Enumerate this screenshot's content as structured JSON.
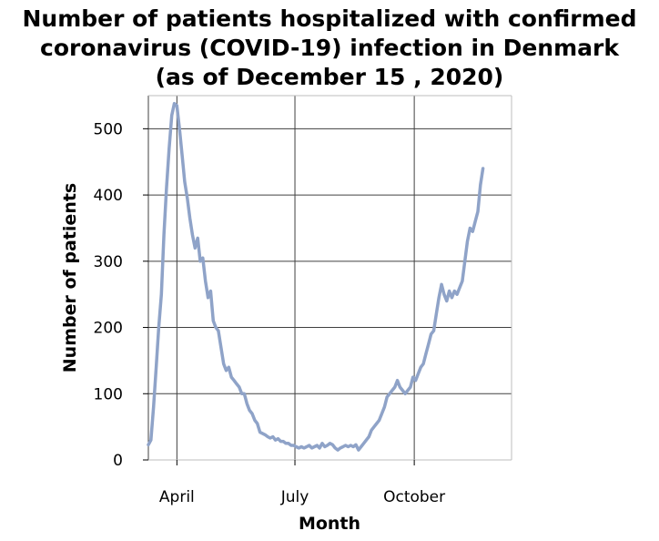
{
  "chart_data": {
    "type": "line",
    "title_lines": [
      "Number of patients hospitalized with confirmed",
      "coronavirus (COVID-19) infection in Denmark",
      "(as of December 15 , 2020)"
    ],
    "xlabel": "Month",
    "ylabel": "Number of patients",
    "x_start": "2020-03-10",
    "x_end": "2020-12-15",
    "xlim": [
      "2020-03-10",
      "2020-12-15"
    ],
    "ylim": [
      0,
      550
    ],
    "x_ticks": [
      {
        "date": "2020-04-01",
        "label": "April"
      },
      {
        "date": "2020-07-01",
        "label": "July"
      },
      {
        "date": "2020-10-01",
        "label": "October"
      }
    ],
    "y_ticks": [
      0,
      100,
      200,
      300,
      400,
      500
    ],
    "grid": true,
    "legend": false,
    "line_color": "#8fa3c8",
    "series": [
      {
        "values": [
          [
            "2020-03-10",
            23
          ],
          [
            "2020-03-12",
            30
          ],
          [
            "2020-03-14",
            80
          ],
          [
            "2020-03-16",
            140
          ],
          [
            "2020-03-18",
            200
          ],
          [
            "2020-03-20",
            250
          ],
          [
            "2020-03-22",
            340
          ],
          [
            "2020-03-24",
            410
          ],
          [
            "2020-03-26",
            470
          ],
          [
            "2020-03-28",
            520
          ],
          [
            "2020-03-30",
            538
          ],
          [
            "2020-04-01",
            535
          ],
          [
            "2020-04-03",
            500
          ],
          [
            "2020-04-05",
            460
          ],
          [
            "2020-04-07",
            420
          ],
          [
            "2020-04-09",
            395
          ],
          [
            "2020-04-11",
            365
          ],
          [
            "2020-04-13",
            340
          ],
          [
            "2020-04-15",
            320
          ],
          [
            "2020-04-17",
            335
          ],
          [
            "2020-04-19",
            300
          ],
          [
            "2020-04-21",
            305
          ],
          [
            "2020-04-23",
            270
          ],
          [
            "2020-04-25",
            245
          ],
          [
            "2020-04-27",
            255
          ],
          [
            "2020-04-29",
            210
          ],
          [
            "2020-05-01",
            200
          ],
          [
            "2020-05-03",
            195
          ],
          [
            "2020-05-05",
            170
          ],
          [
            "2020-05-07",
            145
          ],
          [
            "2020-05-09",
            135
          ],
          [
            "2020-05-11",
            140
          ],
          [
            "2020-05-13",
            125
          ],
          [
            "2020-05-15",
            120
          ],
          [
            "2020-05-17",
            115
          ],
          [
            "2020-05-19",
            110
          ],
          [
            "2020-05-21",
            100
          ],
          [
            "2020-05-23",
            100
          ],
          [
            "2020-05-25",
            85
          ],
          [
            "2020-05-27",
            75
          ],
          [
            "2020-05-29",
            70
          ],
          [
            "2020-05-31",
            60
          ],
          [
            "2020-06-02",
            55
          ],
          [
            "2020-06-04",
            42
          ],
          [
            "2020-06-06",
            40
          ],
          [
            "2020-06-08",
            38
          ],
          [
            "2020-06-10",
            35
          ],
          [
            "2020-06-12",
            33
          ],
          [
            "2020-06-14",
            35
          ],
          [
            "2020-06-16",
            30
          ],
          [
            "2020-06-18",
            32
          ],
          [
            "2020-06-20",
            28
          ],
          [
            "2020-06-22",
            28
          ],
          [
            "2020-06-24",
            25
          ],
          [
            "2020-06-26",
            25
          ],
          [
            "2020-06-28",
            22
          ],
          [
            "2020-06-30",
            22
          ],
          [
            "2020-07-02",
            20
          ],
          [
            "2020-07-04",
            18
          ],
          [
            "2020-07-06",
            20
          ],
          [
            "2020-07-08",
            18
          ],
          [
            "2020-07-10",
            20
          ],
          [
            "2020-07-12",
            22
          ],
          [
            "2020-07-14",
            18
          ],
          [
            "2020-07-16",
            20
          ],
          [
            "2020-07-18",
            22
          ],
          [
            "2020-07-20",
            18
          ],
          [
            "2020-07-22",
            25
          ],
          [
            "2020-07-24",
            20
          ],
          [
            "2020-07-26",
            22
          ],
          [
            "2020-07-28",
            25
          ],
          [
            "2020-07-30",
            23
          ],
          [
            "2020-08-01",
            18
          ],
          [
            "2020-08-03",
            15
          ],
          [
            "2020-08-05",
            18
          ],
          [
            "2020-08-07",
            20
          ],
          [
            "2020-08-09",
            22
          ],
          [
            "2020-08-11",
            20
          ],
          [
            "2020-08-13",
            22
          ],
          [
            "2020-08-15",
            20
          ],
          [
            "2020-08-17",
            23
          ],
          [
            "2020-08-19",
            15
          ],
          [
            "2020-08-21",
            20
          ],
          [
            "2020-08-23",
            25
          ],
          [
            "2020-08-25",
            30
          ],
          [
            "2020-08-27",
            35
          ],
          [
            "2020-08-29",
            45
          ],
          [
            "2020-08-31",
            50
          ],
          [
            "2020-09-02",
            55
          ],
          [
            "2020-09-04",
            60
          ],
          [
            "2020-09-06",
            70
          ],
          [
            "2020-09-08",
            80
          ],
          [
            "2020-09-10",
            95
          ],
          [
            "2020-09-12",
            100
          ],
          [
            "2020-09-14",
            105
          ],
          [
            "2020-09-16",
            110
          ],
          [
            "2020-09-18",
            120
          ],
          [
            "2020-09-20",
            110
          ],
          [
            "2020-09-22",
            105
          ],
          [
            "2020-09-24",
            100
          ],
          [
            "2020-09-26",
            105
          ],
          [
            "2020-09-28",
            110
          ],
          [
            "2020-09-30",
            125
          ],
          [
            "2020-10-02",
            120
          ],
          [
            "2020-10-04",
            130
          ],
          [
            "2020-10-06",
            140
          ],
          [
            "2020-10-08",
            145
          ],
          [
            "2020-10-10",
            160
          ],
          [
            "2020-10-12",
            175
          ],
          [
            "2020-10-14",
            190
          ],
          [
            "2020-10-16",
            195
          ],
          [
            "2020-10-18",
            220
          ],
          [
            "2020-10-20",
            245
          ],
          [
            "2020-10-22",
            265
          ],
          [
            "2020-10-24",
            250
          ],
          [
            "2020-10-26",
            240
          ],
          [
            "2020-10-28",
            255
          ],
          [
            "2020-10-30",
            245
          ],
          [
            "2020-11-01",
            255
          ],
          [
            "2020-11-03",
            250
          ],
          [
            "2020-11-05",
            260
          ],
          [
            "2020-11-07",
            270
          ],
          [
            "2020-11-09",
            300
          ],
          [
            "2020-11-11",
            330
          ],
          [
            "2020-11-13",
            350
          ],
          [
            "2020-11-15",
            345
          ],
          [
            "2020-11-17",
            360
          ],
          [
            "2020-11-19",
            375
          ],
          [
            "2020-11-21",
            415
          ],
          [
            "2020-11-23",
            440
          ]
        ]
      }
    ]
  }
}
